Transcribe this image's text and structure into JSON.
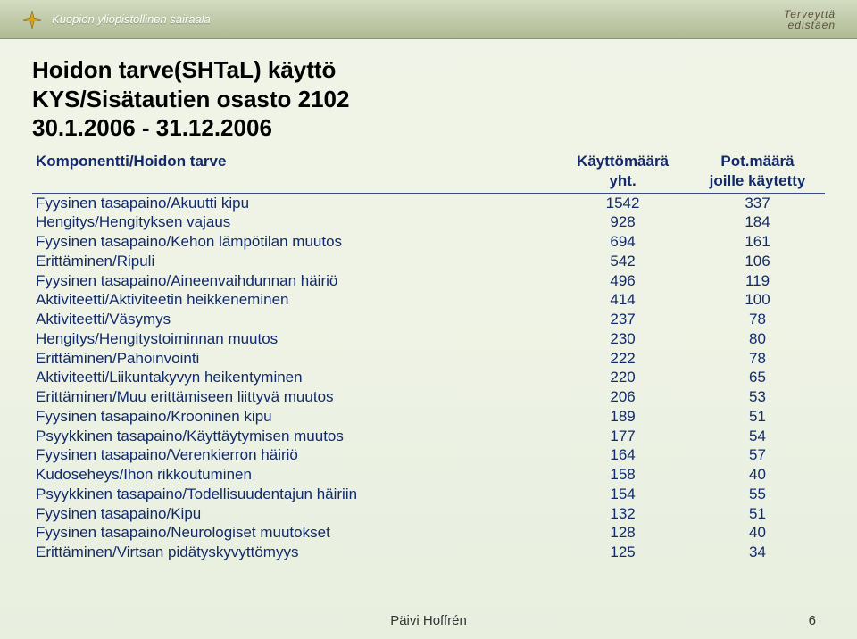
{
  "header": {
    "org_name": "Kuopion yliopistollinen sairaala",
    "tagline_line1": "Terveyttä",
    "tagline_line2": "edistäen",
    "icon_fill": "#d6a21a",
    "icon_stroke": "#6b5a1a"
  },
  "title": {
    "line1": "Hoidon tarve(SHTaL) käyttö",
    "line2": "KYS/Sisätautien osasto 2102",
    "line3": "30.1.2006 - 31.12.2006"
  },
  "table": {
    "header_col1": "Komponentti/Hoidon tarve",
    "header_col2_line1": "Käyttömäärä",
    "header_col2_line2": "yht.",
    "header_col3_line1": "Pot.määrä",
    "header_col3_line2": "joille käytetty",
    "text_color": "#122a6a",
    "rows": [
      {
        "label": "Fyysinen tasapaino/Akuutti kipu",
        "v1": "1542",
        "v2": "337"
      },
      {
        "label": "Hengitys/Hengityksen vajaus",
        "v1": "928",
        "v2": "184"
      },
      {
        "label": "Fyysinen tasapaino/Kehon lämpötilan muutos",
        "v1": "694",
        "v2": "161"
      },
      {
        "label": "Erittäminen/Ripuli",
        "v1": "542",
        "v2": "106"
      },
      {
        "label": "Fyysinen tasapaino/Aineenvaihdunnan häiriö",
        "v1": "496",
        "v2": "119"
      },
      {
        "label": "Aktiviteetti/Aktiviteetin heikkeneminen",
        "v1": "414",
        "v2": "100"
      },
      {
        "label": "Aktiviteetti/Väsymys",
        "v1": "237",
        "v2": "78"
      },
      {
        "label": "Hengitys/Hengitystoiminnan muutos",
        "v1": "230",
        "v2": "80"
      },
      {
        "label": "Erittäminen/Pahoinvointi",
        "v1": "222",
        "v2": "78"
      },
      {
        "label": "Aktiviteetti/Liikuntakyvyn heikentyminen",
        "v1": "220",
        "v2": "65"
      },
      {
        "label": "Erittäminen/Muu erittämiseen liittyvä muutos",
        "v1": "206",
        "v2": "53"
      },
      {
        "label": "Fyysinen tasapaino/Krooninen kipu",
        "v1": "189",
        "v2": "51"
      },
      {
        "label": "Psyykkinen tasapaino/Käyttäytymisen muutos",
        "v1": "177",
        "v2": "54"
      },
      {
        "label": "Fyysinen tasapaino/Verenkierron häiriö",
        "v1": "164",
        "v2": "57"
      },
      {
        "label": "Kudoseheys/Ihon rikkoutuminen",
        "v1": "158",
        "v2": "40"
      },
      {
        "label": "Psyykkinen tasapaino/Todellisuudentajun häiriin",
        "v1": "154",
        "v2": "55"
      },
      {
        "label": "Fyysinen tasapaino/Kipu",
        "v1": "132",
        "v2": "51"
      },
      {
        "label": "Fyysinen tasapaino/Neurologiset muutokset",
        "v1": "128",
        "v2": "40"
      },
      {
        "label": "Erittäminen/Virtsan pidätyskyvyttömyys",
        "v1": "125",
        "v2": "34"
      }
    ]
  },
  "footer": {
    "author": "Päivi Hoffrén",
    "page": "6"
  }
}
